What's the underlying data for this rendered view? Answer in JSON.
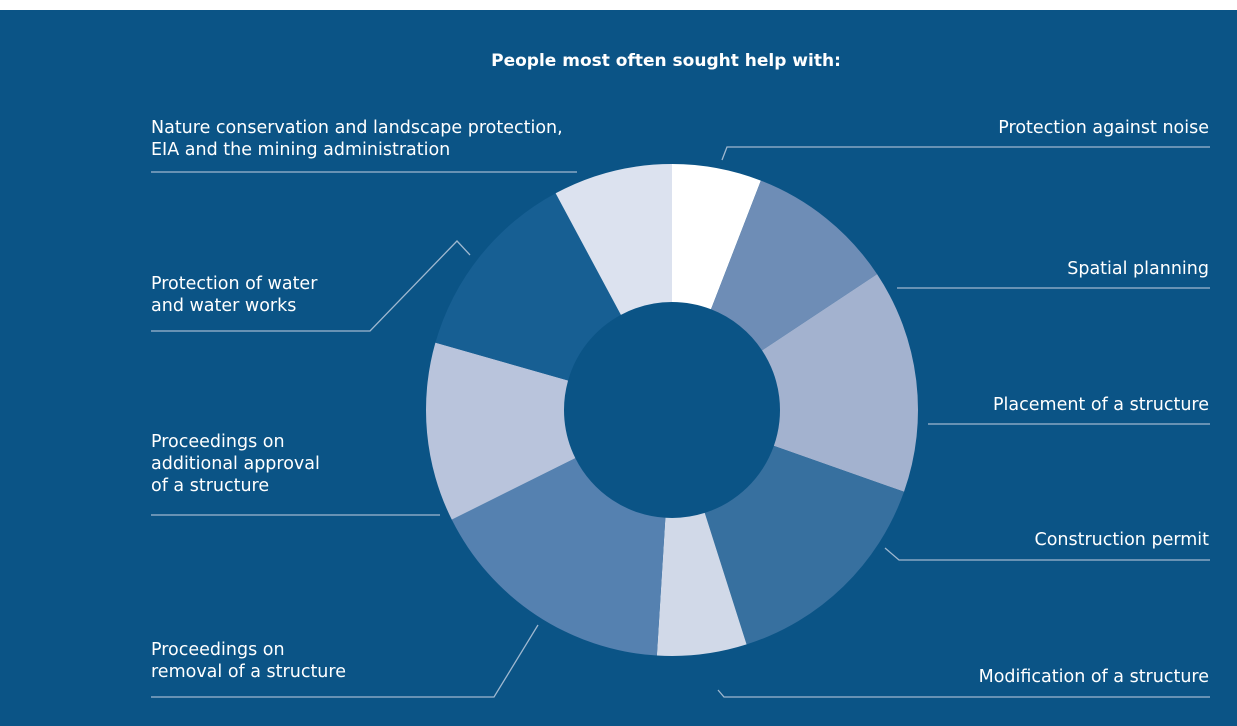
{
  "chart_data": {
    "type": "pie",
    "donut": true,
    "title": "People most often sought help with:",
    "legend": "none",
    "categories": [
      "Protection against noise",
      "Spatial planning",
      "Placement of a structure",
      "Construction permit",
      "Modification of a structure",
      "Proceedings on removal of a structure",
      "Proceedings on additional approval of a structure",
      "Protection of water and water works",
      "Nature conservation and landscape protection, EIA and the mining administration"
    ],
    "values": [
      6,
      10,
      15,
      15,
      6,
      17,
      12,
      13,
      8
    ],
    "colors": [
      "#ffffff",
      "#6e8db6",
      "#a3b2cf",
      "#37709f",
      "#d1d9e8",
      "#5581b0",
      "#b9c4dc",
      "#175f93",
      "#dce2ef"
    ],
    "labels": [
      {
        "lines": [
          "Protection against noise"
        ]
      },
      {
        "lines": [
          "Spatial planning"
        ]
      },
      {
        "lines": [
          "Placement of a structure"
        ]
      },
      {
        "lines": [
          "Construction permit"
        ]
      },
      {
        "lines": [
          "Modification of a structure"
        ]
      },
      {
        "lines": [
          "Proceedings on",
          "removal of a structure"
        ]
      },
      {
        "lines": [
          "Proceedings on",
          "additional approval",
          "of a structure"
        ]
      },
      {
        "lines": [
          "Protection of water",
          "and water works"
        ]
      },
      {
        "lines": [
          "Nature conservation and landscape protection,",
          "EIA and the mining administration"
        ]
      }
    ]
  }
}
